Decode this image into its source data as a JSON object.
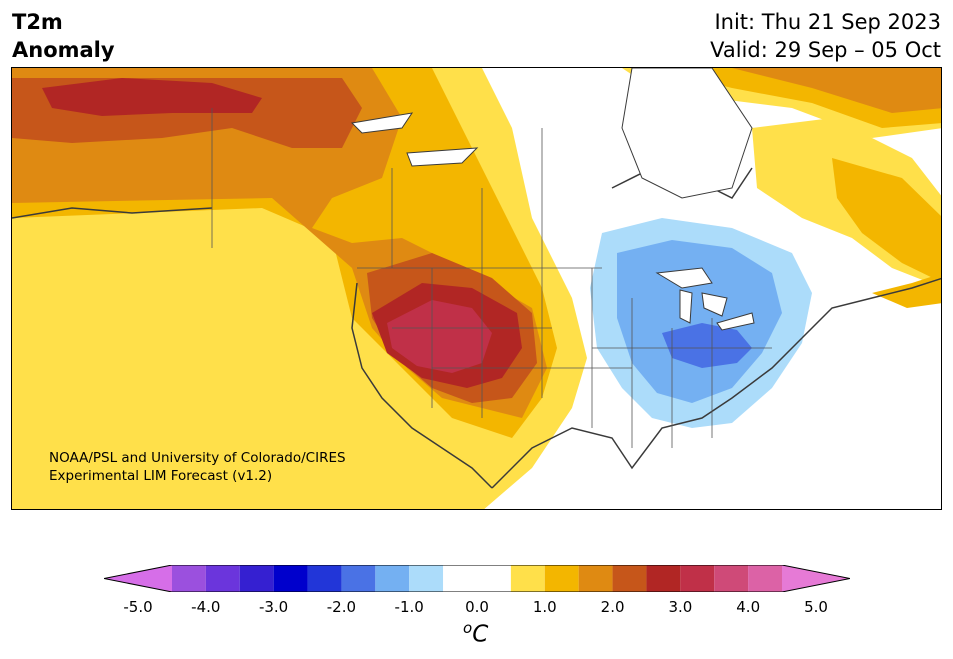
{
  "title_left": {
    "line1": "T2m",
    "line2": "Anomaly"
  },
  "title_right": {
    "line1": "Init: Thu 21 Sep 2023",
    "line2": "Valid: 29 Sep – 05 Oct"
  },
  "credit": {
    "line1": "NOAA/PSL and University of Colorado/CIRES",
    "line2": "Experimental LIM Forecast (v1.2)"
  },
  "colorbar": {
    "colors": [
      "#d66ee8",
      "#9b50de",
      "#6b35dc",
      "#3520d1",
      "#0000cc",
      "#2236d8",
      "#4a72e5",
      "#74b0f2",
      "#acdcfa",
      "#ffffff",
      "#ffffff",
      "#ffe04a",
      "#f3b600",
      "#df8a12",
      "#c6561a",
      "#b12624",
      "#c03048",
      "#cf4a78",
      "#dc62a6",
      "#e67ad6"
    ],
    "ticks": [
      "-5.0",
      "-4.0",
      "-3.0",
      "-2.0",
      "-1.0",
      "0.0",
      "1.0",
      "2.0",
      "3.0",
      "4.0",
      "5.0"
    ],
    "unit_base": "C",
    "unit_sup": "o"
  }
}
